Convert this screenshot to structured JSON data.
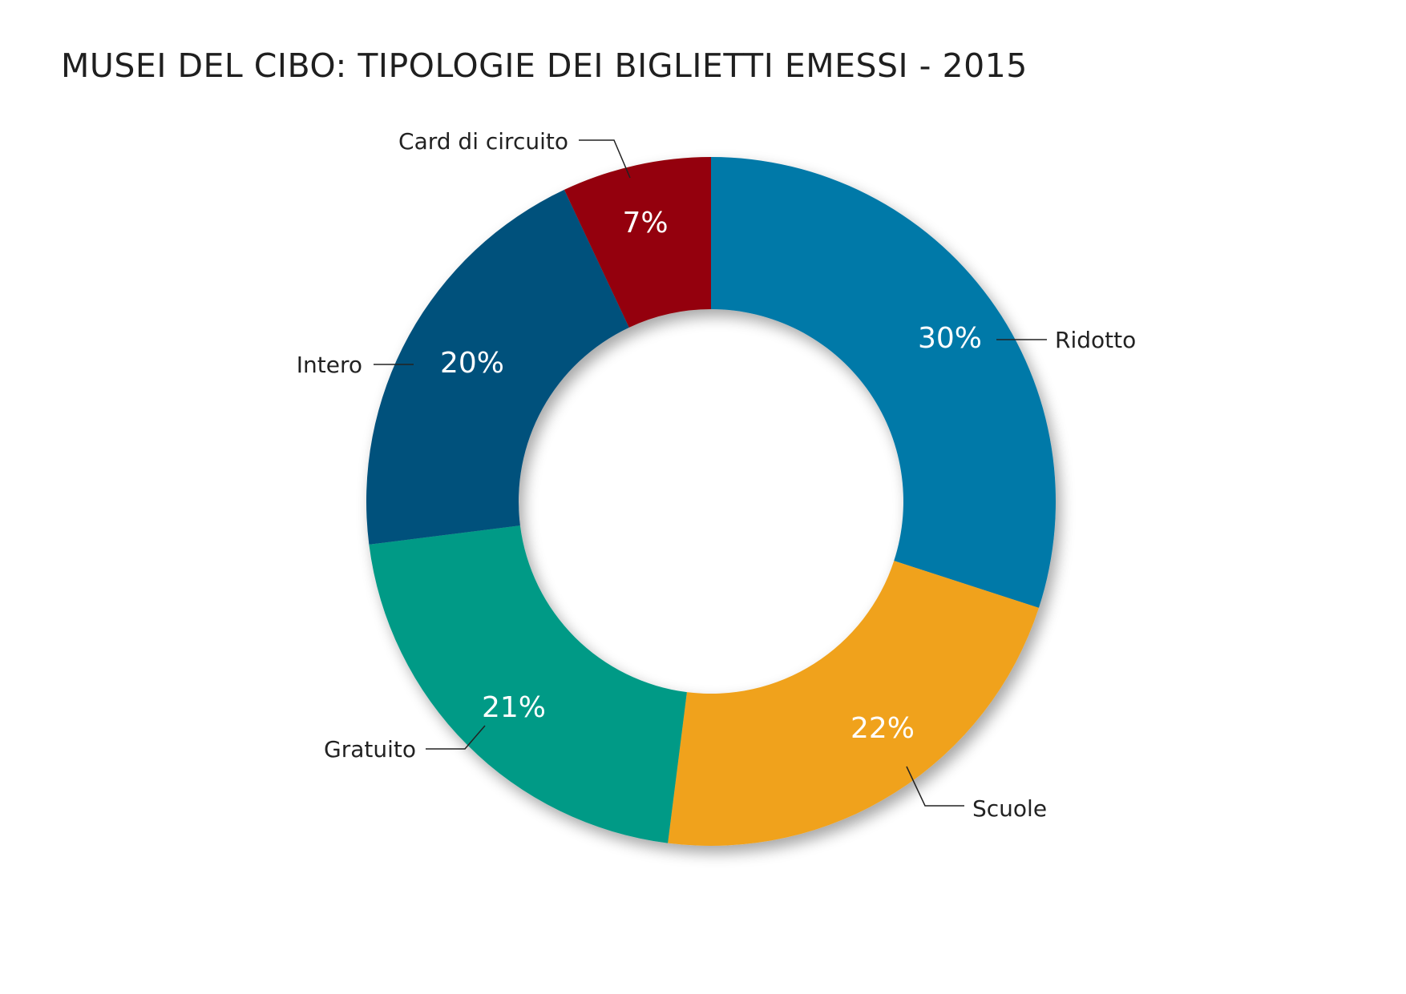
{
  "chart_data": {
    "type": "pie",
    "title": "MUSEI DEL CIBO: TIPOLOGIE DEI BIGLIETTI EMESSI - 2015",
    "donut": true,
    "slices": [
      {
        "label": "Ridotto",
        "value": 30,
        "value_label": "30%",
        "color": "#0079a8"
      },
      {
        "label": "Scuole",
        "value": 22,
        "value_label": "22%",
        "color": "#f0a21f"
      },
      {
        "label": "Gratuito",
        "value": 21,
        "value_label": "21%",
        "color": "#049a86"
      },
      {
        "label": "Intero",
        "value": 20,
        "value_label": "20%",
        "color": "#05517c"
      },
      {
        "label": "Card di circuito",
        "value": 7,
        "value_label": "7%",
        "color": "#94010a"
      }
    ],
    "start": "12 o'clock",
    "direction": "clockwise"
  }
}
